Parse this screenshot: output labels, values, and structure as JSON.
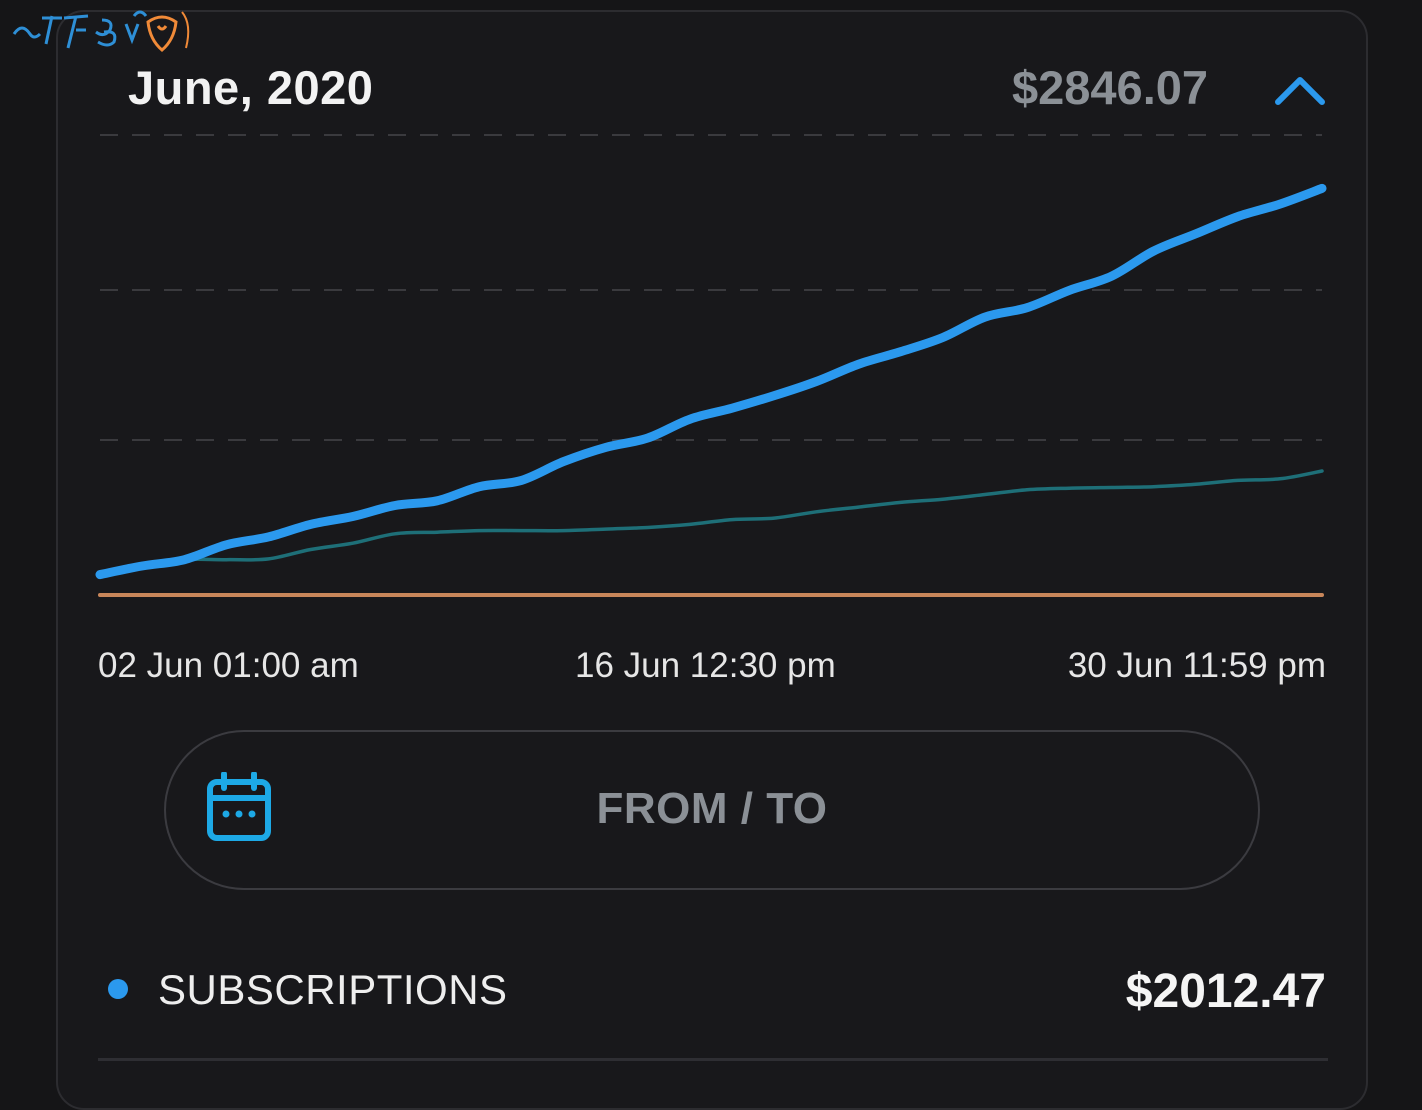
{
  "watermark": {
    "text": "Best Hot"
  },
  "header": {
    "title": "June, 2020",
    "total": "$2846.07",
    "collapse_icon": "chevron-up-icon"
  },
  "colors": {
    "accent": "#2b99ee",
    "series_main": "#2b99ee",
    "series_secondary": "#1e6f78",
    "series_baseline": "#c8865a",
    "grid": "#3a3a3e",
    "muted_text": "#8b9096"
  },
  "chart_data": {
    "type": "line",
    "x_labels": [
      "02 Jun 01:00 am",
      "16 Jun 12:30 pm",
      "30 Jun 11:59 pm"
    ],
    "grid": "dashed horizontal",
    "series": [
      {
        "values": [
          0,
          55,
          95,
          190,
          240,
          320,
          370,
          440,
          470,
          560,
          600,
          720,
          810,
          870,
          990,
          1060,
          1140,
          1230,
          1340,
          1420,
          1510,
          1640,
          1700,
          1810,
          1900,
          2060,
          2170,
          2280,
          2360,
          2460
        ]
      },
      {
        "values": [
          0,
          55,
          95,
          95,
          100,
          160,
          200,
          260,
          270,
          280,
          280,
          280,
          290,
          300,
          320,
          350,
          360,
          400,
          430,
          460,
          480,
          510,
          540,
          550,
          555,
          560,
          575,
          600,
          610,
          660
        ]
      },
      {
        "values": [
          -130,
          -130,
          -130,
          -130,
          -130,
          -130,
          -130,
          -130,
          -130,
          -130,
          -130,
          -130,
          -130,
          -130,
          -130,
          -130,
          -130,
          -130,
          -130,
          -130,
          -130,
          -130,
          -130,
          -130,
          -130,
          -130,
          -130,
          -130,
          -130,
          -130
        ]
      }
    ]
  },
  "date_range_button": {
    "label": "FROM / TO",
    "icon": "calendar-icon"
  },
  "legend": {
    "label": "SUBSCRIPTIONS",
    "value": "$2012.47"
  }
}
